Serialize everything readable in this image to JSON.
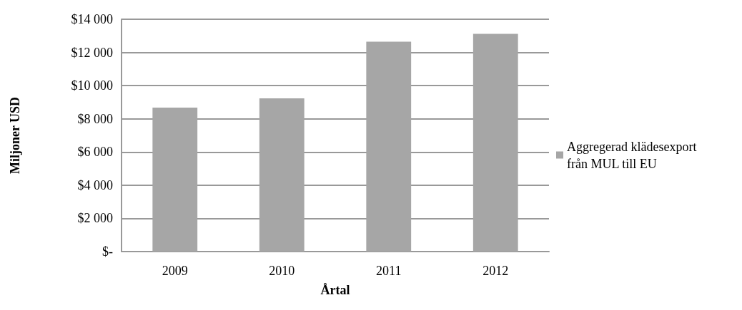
{
  "chart_data": {
    "type": "bar",
    "xlabel": "Årtal",
    "ylabel": "Miljoner USD",
    "categories": [
      "2009",
      "2010",
      "2011",
      "2012"
    ],
    "series": [
      {
        "name": "Aggregerad klädesexport från MUL till EU",
        "color": "#a6a6a6",
        "values": [
          8670,
          9230,
          12650,
          13120
        ]
      }
    ],
    "ylim": [
      0,
      14000
    ],
    "yticks": [
      {
        "value": 0,
        "label": "$-"
      },
      {
        "value": 2000,
        "label": "$2 000"
      },
      {
        "value": 4000,
        "label": "$4 000"
      },
      {
        "value": 6000,
        "label": "$6 000"
      },
      {
        "value": 8000,
        "label": "$8 000"
      },
      {
        "value": 10000,
        "label": "$10 000"
      },
      {
        "value": 12000,
        "label": "$12 000"
      },
      {
        "value": 14000,
        "label": "$14 000"
      }
    ],
    "grid": "y",
    "legend": "right"
  }
}
